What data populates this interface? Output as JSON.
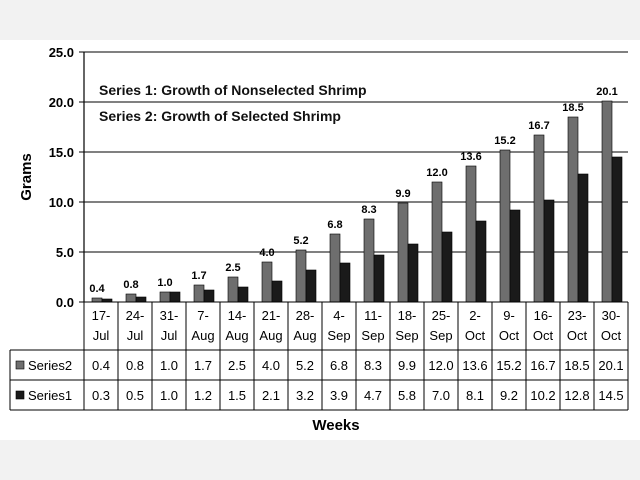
{
  "chart_data": {
    "type": "bar",
    "title": "",
    "ylabel": "Grams",
    "xlabel": "Weeks",
    "ylim": [
      0,
      25
    ],
    "yticks": [
      "0.0",
      "5.0",
      "10.0",
      "15.0",
      "20.0",
      "25.0"
    ],
    "grid": true,
    "annotations": [
      "Series 1: Growth of Nonselected Shrimp",
      "Series 2: Growth of Selected Shrimp"
    ],
    "categories": [
      [
        "17-",
        "Jul"
      ],
      [
        "24-",
        "Jul"
      ],
      [
        "31-",
        "Jul"
      ],
      [
        "7-",
        "Aug"
      ],
      [
        "14-",
        "Aug"
      ],
      [
        "21-",
        "Aug"
      ],
      [
        "28-",
        "Aug"
      ],
      [
        "4-",
        "Sep"
      ],
      [
        "11-",
        "Sep"
      ],
      [
        "18-",
        "Sep"
      ],
      [
        "25-",
        "Sep"
      ],
      [
        "2-",
        "Oct"
      ],
      [
        "9-",
        "Oct"
      ],
      [
        "16-",
        "Oct"
      ],
      [
        "23-",
        "Oct"
      ],
      [
        "30-",
        "Oct"
      ]
    ],
    "series": [
      {
        "name": "Series2",
        "color": "#6e6e6e",
        "values": [
          0.4,
          0.8,
          1.0,
          1.7,
          2.5,
          4.0,
          5.2,
          6.8,
          8.3,
          9.9,
          12.0,
          13.6,
          15.2,
          16.7,
          18.5,
          20.1
        ],
        "labels": [
          "0.4",
          "0.8",
          "1.0",
          "1.7",
          "2.5",
          "4.0",
          "5.2",
          "6.8",
          "8.3",
          "9.9",
          "12.0",
          "13.6",
          "15.2",
          "16.7",
          "18.5",
          "20.1"
        ]
      },
      {
        "name": "Series1",
        "color": "#1a1a1a",
        "values": [
          0.3,
          0.5,
          1.0,
          1.2,
          1.5,
          2.1,
          3.2,
          3.9,
          4.7,
          5.8,
          7.0,
          8.1,
          9.2,
          10.2,
          12.8,
          14.5
        ],
        "labels": [
          "0.3",
          "0.5",
          "1.0",
          "1.2",
          "1.5",
          "2.1",
          "3.2",
          "3.9",
          "4.7",
          "5.8",
          "7.0",
          "8.1",
          "9.2",
          "10.2",
          "12.8",
          "14.5"
        ]
      }
    ]
  }
}
